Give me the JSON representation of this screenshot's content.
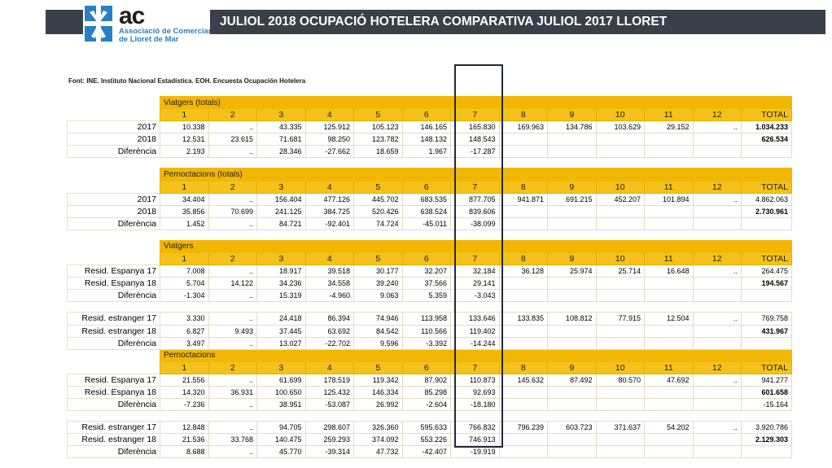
{
  "header": {
    "logo_text": "ac",
    "logo_subtitle_line1": "Associació de Comerciants",
    "logo_subtitle_line2": "de Lloret de Mar",
    "title": "JULIOL  2018    OCUPACIÓ HOTELERA  COMPARATIVA  JULIOL 2017  LLORET"
  },
  "source": "Font: INE. Instituto Nacional Estadística. EOH. Encuesta Ocupación Hotelera",
  "months": [
    "1",
    "2",
    "3",
    "4",
    "5",
    "6",
    "7",
    "8",
    "9",
    "10",
    "11",
    "12"
  ],
  "total_label": "TOTAL",
  "colors": {
    "header_yellow": "#f4c21b",
    "title_bar": "#3a404a",
    "logo_blue": "#2a7fc1"
  },
  "sections": [
    {
      "title": "Viatgers (totals)",
      "groups": [
        {
          "rows": [
            {
              "label": "2017",
              "values": [
                "10.338",
                "..",
                "43.335",
                "125.912",
                "105.123",
                "146.165",
                "165.830",
                "169.963",
                "134.786",
                "103.629",
                "29.152",
                ".."
              ],
              "total": "1.034.233",
              "bold_total": true
            },
            {
              "label": "2018",
              "values": [
                "12.531",
                "23.615",
                "71.681",
                "98.250",
                "123.782",
                "148.132",
                "148.543",
                "",
                "",
                "",
                "",
                ""
              ],
              "total": "626.534",
              "bold_total": true
            },
            {
              "label": "Diferència",
              "values": [
                "2.193",
                "..",
                "28.346",
                "-27.662",
                "18.659",
                "1.967",
                "-17.287",
                "",
                "",
                "",
                "",
                ""
              ],
              "total": "",
              "bold_total": false
            }
          ]
        }
      ]
    },
    {
      "title": "Pernoctacions (totals)",
      "groups": [
        {
          "rows": [
            {
              "label": "2017",
              "values": [
                "34.404",
                "..",
                "156.404",
                "477.126",
                "445.702",
                "683.535",
                "877.705",
                "941.871",
                "691.215",
                "452.207",
                "101.894",
                ".."
              ],
              "total": "4.862.063",
              "bold_total": false
            },
            {
              "label": "2018",
              "values": [
                "35.856",
                "70.699",
                "241.125",
                "384.725",
                "520.426",
                "638.524",
                "839.606",
                "",
                "",
                "",
                "",
                ""
              ],
              "total": "2.730.961",
              "bold_total": true
            },
            {
              "label": "Diferència",
              "values": [
                "1.452",
                "..",
                "84.721",
                "-92.401",
                "74.724",
                "-45.011",
                "-38.099",
                "",
                "",
                "",
                "",
                ""
              ],
              "total": "",
              "bold_total": false
            }
          ]
        }
      ]
    },
    {
      "title": "Viatgers",
      "groups": [
        {
          "rows": [
            {
              "label": "Resid. Espanya 17",
              "values": [
                "7.008",
                "..",
                "18.917",
                "39.518",
                "30.177",
                "32.207",
                "32.184",
                "36.128",
                "25.974",
                "25.714",
                "16.648",
                ".."
              ],
              "total": "264.475",
              "bold_total": false
            },
            {
              "label": "Resid. Espanya 18",
              "values": [
                "5.704",
                "14.122",
                "34.236",
                "34.558",
                "39.240",
                "37.566",
                "29.141",
                "",
                "",
                "",
                "",
                ""
              ],
              "total": "194.567",
              "bold_total": true
            },
            {
              "label": "Diferència",
              "values": [
                "-1.304",
                "..",
                "15.319",
                "-4.960",
                "9.063",
                "5.359",
                "-3.043",
                "",
                "",
                "",
                "",
                ""
              ],
              "total": "",
              "bold_total": false
            }
          ]
        },
        {
          "rows": [
            {
              "label": "Resid. estranger 17",
              "values": [
                "3.330",
                "..",
                "24.418",
                "86.394",
                "74.946",
                "113.958",
                "133.646",
                "133.835",
                "108.812",
                "77.915",
                "12.504",
                ".."
              ],
              "total": "769.758",
              "bold_total": false
            },
            {
              "label": "Resid. estranger 18",
              "values": [
                "6.827",
                "9.493",
                "37.445",
                "63.692",
                "84.542",
                "110.566",
                "119.402",
                "",
                "",
                "",
                "",
                ""
              ],
              "total": "431.967",
              "bold_total": true
            },
            {
              "label": "Diferència",
              "values": [
                "3.497",
                "..",
                "13.027",
                "-22.702",
                "9.596",
                "-3.392",
                "-14.244",
                "",
                "",
                "",
                "",
                ""
              ],
              "total": "",
              "bold_total": false
            }
          ]
        }
      ]
    },
    {
      "title": "Pernoctacions",
      "groups": [
        {
          "rows": [
            {
              "label": "Resid. Espanya 17",
              "values": [
                "21.556",
                "..",
                "61.699",
                "178.519",
                "119.342",
                "87.902",
                "110.873",
                "145.632",
                "87.492",
                "80.570",
                "47.692",
                ".."
              ],
              "total": "941.277",
              "bold_total": false
            },
            {
              "label": "Resid. Espanya 18",
              "values": [
                "14.320",
                "36.931",
                "100.650",
                "125.432",
                "146.334",
                "85.298",
                "92.693",
                "",
                "",
                "",
                "",
                ""
              ],
              "total": "601.658",
              "bold_total": true
            },
            {
              "label": "Diferència",
              "values": [
                "-7.236",
                "..",
                "38.951",
                "-53.087",
                "26.992",
                "-2.604",
                "-18.180",
                "",
                "",
                "",
                "",
                ""
              ],
              "total": "-15.164",
              "bold_total": false
            }
          ]
        },
        {
          "rows": [
            {
              "label": "Resid. estranger 17",
              "values": [
                "12.848",
                "..",
                "94.705",
                "298.607",
                "326.360",
                "595.633",
                "766.832",
                "796.239",
                "603.723",
                "371.637",
                "54.202",
                ".."
              ],
              "total": "3.920.786",
              "bold_total": false
            },
            {
              "label": "Resid. estranger 18",
              "values": [
                "21.536",
                "33.768",
                "140.475",
                "259.293",
                "374.092",
                "553.226",
                "746.913",
                "",
                "",
                "",
                "",
                ""
              ],
              "total": "2.129.303",
              "bold_total": true
            },
            {
              "label": "Diferència",
              "values": [
                "8.688",
                "..",
                "45.770",
                "-39.314",
                "47.732",
                "-42.407",
                "-19.919",
                "",
                "",
                "",
                "",
                ""
              ],
              "total": "",
              "bold_total": false
            }
          ]
        }
      ]
    }
  ]
}
